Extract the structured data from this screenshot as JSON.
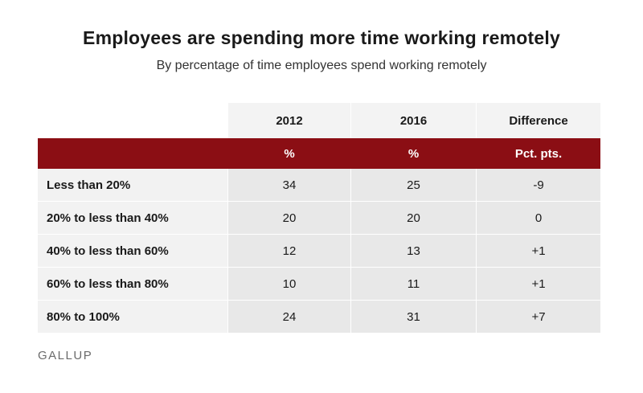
{
  "title": "Employees are spending more time working remotely",
  "subtitle": "By percentage of time employees spend working remotely",
  "source": "GALLUP",
  "colors": {
    "header_band": "#8b0e14",
    "cell_bg": "#e8e8e8"
  },
  "chart_data": {
    "type": "table",
    "title": "Employees are spending more time working remotely",
    "subtitle": "By percentage of time employees spend working remotely",
    "columns": [
      "",
      "2012",
      "2016",
      "Difference"
    ],
    "units": [
      "",
      "%",
      "%",
      "Pct. pts."
    ],
    "rows": [
      {
        "label": "Less than 20%",
        "v2012": "34",
        "v2016": "25",
        "diff": "-9"
      },
      {
        "label": "20% to less than 40%",
        "v2012": "20",
        "v2016": "20",
        "diff": "0"
      },
      {
        "label": "40% to less than 60%",
        "v2012": "12",
        "v2016": "13",
        "diff": "+1"
      },
      {
        "label": "60% to less than 80%",
        "v2012": "10",
        "v2016": "11",
        "diff": "+1"
      },
      {
        "label": "80% to 100%",
        "v2012": "24",
        "v2016": "31",
        "diff": "+7"
      }
    ]
  }
}
